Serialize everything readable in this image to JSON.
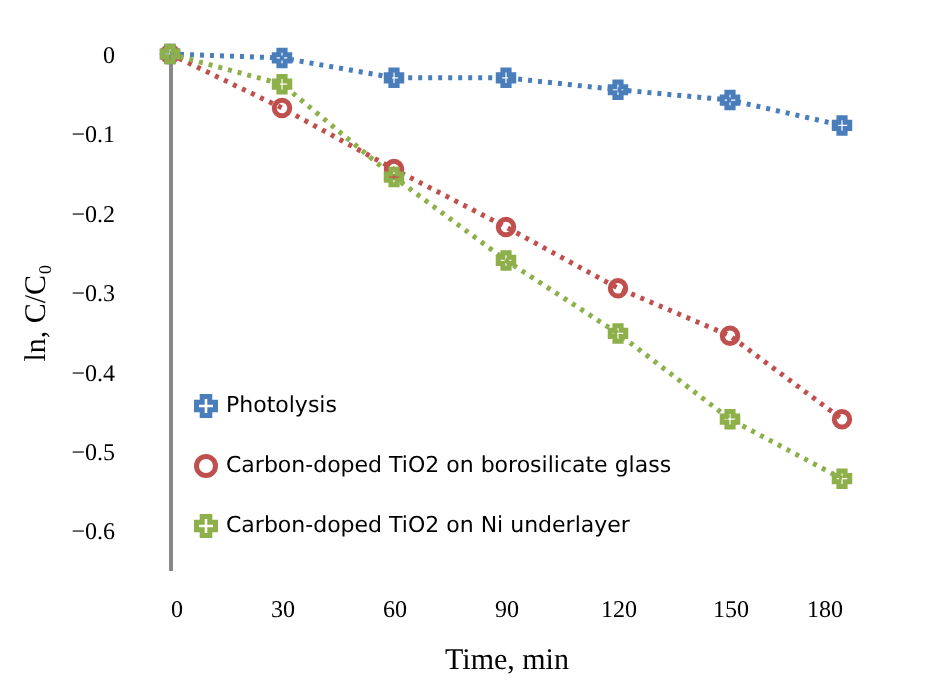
{
  "chart_data": {
    "type": "line",
    "xlabel": "Time, min",
    "ylabel": "ln, C/C₀",
    "x": [
      0,
      30,
      60,
      90,
      120,
      150,
      180
    ],
    "series": [
      {
        "name": "Photolysis",
        "color": "#4a7ebb",
        "marker": "cross",
        "values": [
          0,
          -0.005,
          -0.03,
          -0.03,
          -0.045,
          -0.058,
          -0.09
        ]
      },
      {
        "name": "Carbon-doped TiO2 on borosilicate glass",
        "color": "#c0504d",
        "marker": "circle",
        "values": [
          0,
          -0.068,
          -0.145,
          -0.218,
          -0.295,
          -0.355,
          -0.46
        ]
      },
      {
        "name": "Carbon-doped TiO2 on Ni underlayer",
        "color": "#8db04a",
        "marker": "cross",
        "values": [
          0,
          -0.038,
          -0.155,
          -0.26,
          -0.352,
          -0.46,
          -0.535
        ]
      }
    ],
    "xlim": [
      0,
      180
    ],
    "xticks": [
      0,
      30,
      60,
      90,
      120,
      150,
      180
    ],
    "ylim": [
      -0.65,
      0
    ],
    "yticks": [
      0,
      -0.1,
      -0.2,
      -0.3,
      -0.4,
      -0.5,
      -0.6
    ],
    "grid": false,
    "legend": "bottom left",
    "line_style": "dotted"
  }
}
